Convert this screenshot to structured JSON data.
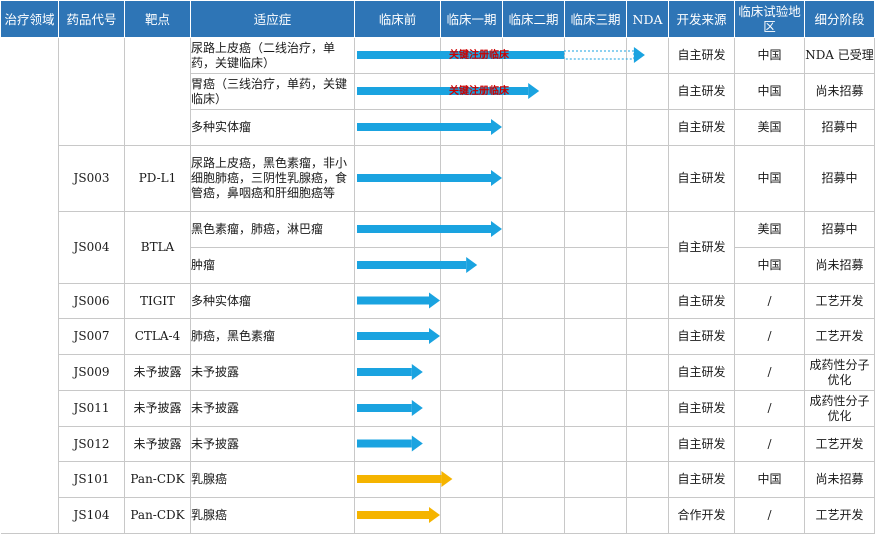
{
  "colors": {
    "header": "#2e75b6",
    "arrow_blue": "#1aa3e0",
    "arrow_yellow": "#f5b400",
    "note_red": "#cc0000"
  },
  "header": [
    "治疗领域",
    "药品代号",
    "靶点",
    "适应症",
    "临床前",
    "临床一期",
    "临床二期",
    "临床三期",
    "NDA",
    "开发来源",
    "临床试验地区",
    "细分阶段"
  ],
  "phase_stages": [
    "临床前",
    "临床一期",
    "临床二期",
    "临床三期",
    "NDA"
  ],
  "rows": [
    {
      "indication": "尿路上皮癌（二线治疗，单药，关键临床）",
      "source": "自主研发",
      "region": "中国",
      "stage": "NDA 已受理",
      "phase_end": 4.45,
      "dashed_from": 3.0,
      "arrow_color": "blue",
      "note": "关键注册临床"
    },
    {
      "indication": "胃癌（三线治疗，单药，关键临床）",
      "source": "自主研发",
      "region": "中国",
      "stage": "尚未招募",
      "phase_end": 2.6,
      "arrow_color": "blue",
      "note": "关键注册临床"
    },
    {
      "indication": "多种实体瘤",
      "source": "自主研发",
      "region": "美国",
      "stage": "招募中",
      "phase_end": 2.0,
      "arrow_color": "blue"
    },
    {
      "code": "JS003",
      "target": "PD-L1",
      "indication": "尿路上皮癌，黑色素瘤，非小细胞肺癌，三阴性乳腺癌，食管癌，鼻咽癌和肝细胞癌等",
      "source": "自主研发",
      "region": "中国",
      "stage": "招募中",
      "phase_end": 2.0,
      "arrow_color": "blue"
    },
    {
      "code": "JS004",
      "target": "BTLA",
      "indication": "黑色素瘤，肺癌，淋巴瘤",
      "source": "自主研发",
      "region": "美国",
      "stage": "招募中",
      "phase_end": 2.0,
      "arrow_color": "blue"
    },
    {
      "indication": "肿瘤",
      "region": "中国",
      "stage": "尚未招募",
      "phase_end": 1.6,
      "arrow_color": "blue"
    },
    {
      "code": "JS006",
      "target": "TIGIT",
      "indication": "多种实体瘤",
      "source": "自主研发",
      "region": "/",
      "stage": "工艺开发",
      "phase_end": 1.0,
      "arrow_color": "blue"
    },
    {
      "code": "JS007",
      "target": "CTLA-4",
      "indication": "肺癌，黑色素瘤",
      "source": "自主研发",
      "region": "/",
      "stage": "工艺开发",
      "phase_end": 1.0,
      "arrow_color": "blue"
    },
    {
      "code": "JS009",
      "target": "未予披露",
      "indication": "未予披露",
      "source": "自主研发",
      "region": "/",
      "stage": "成药性分子优化",
      "phase_end": 0.8,
      "arrow_color": "blue"
    },
    {
      "code": "JS011",
      "target": "未予披露",
      "indication": "未予披露",
      "source": "自主研发",
      "region": "/",
      "stage": "成药性分子优化",
      "phase_end": 0.8,
      "arrow_color": "blue"
    },
    {
      "code": "JS012",
      "target": "未予披露",
      "indication": "未予披露",
      "source": "自主研发",
      "region": "/",
      "stage": "工艺开发",
      "phase_end": 0.8,
      "arrow_color": "blue"
    },
    {
      "code": "JS101",
      "target": "Pan-CDK",
      "indication": "乳腺癌",
      "source": "自主研发",
      "region": "中国",
      "stage": "尚未招募",
      "phase_end": 1.2,
      "arrow_color": "yellow"
    },
    {
      "code": "JS104",
      "target": "Pan-CDK",
      "indication": "乳腺癌",
      "source": "合作开发",
      "region": "/",
      "stage": "工艺开发",
      "phase_end": 1.0,
      "arrow_color": "yellow"
    }
  ]
}
